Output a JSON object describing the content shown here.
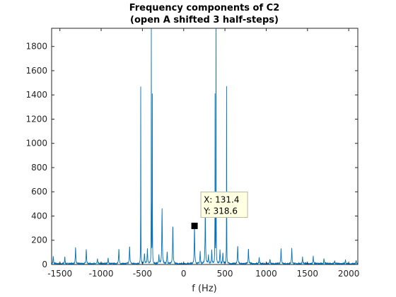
{
  "chart_data": {
    "type": "line",
    "title": [
      "Frequency components of C2",
      "(open A shifted 3 half-steps)"
    ],
    "xlabel": "f (Hz)",
    "ylabel": "",
    "xlim": [
      -1600,
      2110
    ],
    "ylim": [
      0,
      1950
    ],
    "xticks": [
      -1500,
      -1000,
      -500,
      0,
      500,
      1000,
      1500,
      2000
    ],
    "yticks": [
      0,
      200,
      400,
      600,
      800,
      1000,
      1200,
      1400,
      1600,
      1800
    ],
    "grid": false,
    "line_color": "#0072BD",
    "noise_floor": 12,
    "peaks": [
      {
        "f": -1580,
        "a": 60
      },
      {
        "f": -1440,
        "a": 55
      },
      {
        "f": -1310,
        "a": 130
      },
      {
        "f": -1180,
        "a": 125
      },
      {
        "f": -1045,
        "a": 40
      },
      {
        "f": -915,
        "a": 50
      },
      {
        "f": -785,
        "a": 125
      },
      {
        "f": -655,
        "a": 155
      },
      {
        "f": -520,
        "a": 1460
      },
      {
        "f": -475,
        "a": 90
      },
      {
        "f": -440,
        "a": 120
      },
      {
        "f": -392,
        "a": 1950
      },
      {
        "f": -380,
        "a": 1380
      },
      {
        "f": -300,
        "a": 70
      },
      {
        "f": -262,
        "a": 450
      },
      {
        "f": -200,
        "a": 100
      },
      {
        "f": -131,
        "a": 320
      },
      {
        "f": 131,
        "a": 318.6
      },
      {
        "f": 200,
        "a": 100
      },
      {
        "f": 262,
        "a": 450
      },
      {
        "f": 300,
        "a": 70
      },
      {
        "f": 340,
        "a": 110
      },
      {
        "f": 380,
        "a": 1380
      },
      {
        "f": 392,
        "a": 1950
      },
      {
        "f": 440,
        "a": 120
      },
      {
        "f": 475,
        "a": 90
      },
      {
        "f": 520,
        "a": 1460
      },
      {
        "f": 655,
        "a": 155
      },
      {
        "f": 785,
        "a": 125
      },
      {
        "f": 915,
        "a": 50
      },
      {
        "f": 1045,
        "a": 40
      },
      {
        "f": 1180,
        "a": 125
      },
      {
        "f": 1310,
        "a": 130
      },
      {
        "f": 1440,
        "a": 55
      },
      {
        "f": 1570,
        "a": 60
      },
      {
        "f": 1700,
        "a": 40
      },
      {
        "f": 1830,
        "a": 25
      },
      {
        "f": 1960,
        "a": 30
      },
      {
        "f": 2090,
        "a": 25
      }
    ],
    "datatip": {
      "x": 131.4,
      "y": 318.6,
      "x_text": "X: 131.4",
      "y_text": "Y: 318.6"
    }
  }
}
